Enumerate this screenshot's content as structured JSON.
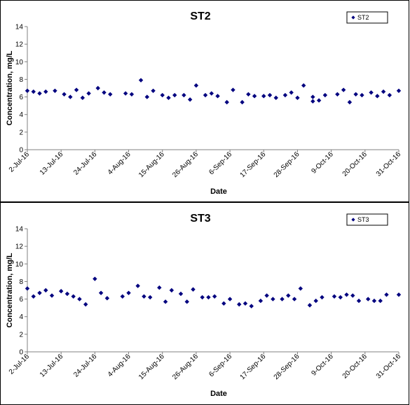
{
  "colors": {
    "marker": "#00007F",
    "axis": "#808080",
    "border": "#000000"
  },
  "chart_data": [
    {
      "type": "scatter",
      "title": "ST2",
      "xlabel": "Date",
      "ylabel": "Concentration, mg/L",
      "ylim": [
        0,
        14
      ],
      "yticks": [
        0,
        2,
        4,
        6,
        8,
        10,
        12,
        14
      ],
      "xlim": [
        "2016-07-02",
        "2016-10-31"
      ],
      "xticks": [
        "2-Jul-16",
        "13-Jul-16",
        "24-Jul-16",
        "4-Aug-16",
        "15-Aug-16",
        "26-Aug-16",
        "6-Sep-16",
        "17-Sep-16",
        "28-Sep-16",
        "9-Oct-16",
        "20-Oct-16",
        "31-Oct-16"
      ],
      "grid": false,
      "legend": "top-right",
      "marker": "diamond",
      "series": [
        {
          "name": "ST2",
          "points": [
            [
              "2016-07-02",
              6.7
            ],
            [
              "2016-07-04",
              6.6
            ],
            [
              "2016-07-06",
              6.4
            ],
            [
              "2016-07-08",
              6.6
            ],
            [
              "2016-07-11",
              6.7
            ],
            [
              "2016-07-14",
              6.3
            ],
            [
              "2016-07-16",
              6.0
            ],
            [
              "2016-07-18",
              6.8
            ],
            [
              "2016-07-20",
              5.9
            ],
            [
              "2016-07-22",
              6.4
            ],
            [
              "2016-07-25",
              7.0
            ],
            [
              "2016-07-27",
              6.5
            ],
            [
              "2016-07-29",
              6.3
            ],
            [
              "2016-08-03",
              6.4
            ],
            [
              "2016-08-05",
              6.3
            ],
            [
              "2016-08-08",
              7.9
            ],
            [
              "2016-08-10",
              6.0
            ],
            [
              "2016-08-12",
              6.7
            ],
            [
              "2016-08-15",
              6.2
            ],
            [
              "2016-08-17",
              5.9
            ],
            [
              "2016-08-19",
              6.2
            ],
            [
              "2016-08-22",
              6.2
            ],
            [
              "2016-08-24",
              5.7
            ],
            [
              "2016-08-26",
              7.3
            ],
            [
              "2016-08-29",
              6.2
            ],
            [
              "2016-08-31",
              6.4
            ],
            [
              "2016-09-02",
              6.1
            ],
            [
              "2016-09-05",
              5.4
            ],
            [
              "2016-09-07",
              6.8
            ],
            [
              "2016-09-10",
              5.4
            ],
            [
              "2016-09-12",
              6.3
            ],
            [
              "2016-09-14",
              6.1
            ],
            [
              "2016-09-17",
              6.1
            ],
            [
              "2016-09-19",
              6.2
            ],
            [
              "2016-09-21",
              5.9
            ],
            [
              "2016-09-24",
              6.2
            ],
            [
              "2016-09-26",
              6.5
            ],
            [
              "2016-09-28",
              5.9
            ],
            [
              "2016-09-30",
              7.3
            ],
            [
              "2016-10-03",
              6.0
            ],
            [
              "2016-10-03",
              5.5
            ],
            [
              "2016-10-05",
              5.6
            ],
            [
              "2016-10-07",
              6.2
            ],
            [
              "2016-10-11",
              6.3
            ],
            [
              "2016-10-13",
              6.8
            ],
            [
              "2016-10-15",
              5.4
            ],
            [
              "2016-10-17",
              6.3
            ],
            [
              "2016-10-19",
              6.2
            ],
            [
              "2016-10-22",
              6.5
            ],
            [
              "2016-10-24",
              6.1
            ],
            [
              "2016-10-26",
              6.6
            ],
            [
              "2016-10-28",
              6.2
            ],
            [
              "2016-10-31",
              6.7
            ]
          ]
        }
      ]
    },
    {
      "type": "scatter",
      "title": "ST3",
      "xlabel": "Date",
      "ylabel": "Concentration, mg/L",
      "ylim": [
        0,
        14
      ],
      "yticks": [
        0,
        2,
        4,
        6,
        8,
        10,
        12,
        14
      ],
      "xlim": [
        "2016-07-02",
        "2016-10-31"
      ],
      "xticks": [
        "2-Jul-16",
        "13-Jul-16",
        "24-Jul-16",
        "4-Aug-16",
        "15-Aug-16",
        "26-Aug-16",
        "6-Sep-16",
        "17-Sep-16",
        "28-Sep-16",
        "9-Oct-16",
        "20-Oct-16",
        "31-Oct-16"
      ],
      "grid": false,
      "legend": "top-right",
      "marker": "diamond",
      "series": [
        {
          "name": "ST3",
          "points": [
            [
              "2016-07-02",
              7.2
            ],
            [
              "2016-07-04",
              6.3
            ],
            [
              "2016-07-06",
              6.7
            ],
            [
              "2016-07-08",
              7.0
            ],
            [
              "2016-07-10",
              6.4
            ],
            [
              "2016-07-13",
              6.9
            ],
            [
              "2016-07-15",
              6.6
            ],
            [
              "2016-07-17",
              6.3
            ],
            [
              "2016-07-19",
              6.0
            ],
            [
              "2016-07-21",
              5.4
            ],
            [
              "2016-07-24",
              8.3
            ],
            [
              "2016-07-26",
              6.7
            ],
            [
              "2016-07-28",
              6.1
            ],
            [
              "2016-08-02",
              6.3
            ],
            [
              "2016-08-04",
              6.7
            ],
            [
              "2016-08-07",
              7.5
            ],
            [
              "2016-08-09",
              6.3
            ],
            [
              "2016-08-11",
              6.2
            ],
            [
              "2016-08-14",
              7.3
            ],
            [
              "2016-08-16",
              5.7
            ],
            [
              "2016-08-18",
              7.0
            ],
            [
              "2016-08-21",
              6.6
            ],
            [
              "2016-08-23",
              5.7
            ],
            [
              "2016-08-25",
              7.1
            ],
            [
              "2016-08-28",
              6.2
            ],
            [
              "2016-08-30",
              6.2
            ],
            [
              "2016-09-01",
              6.3
            ],
            [
              "2016-09-04",
              5.5
            ],
            [
              "2016-09-06",
              6.0
            ],
            [
              "2016-09-09",
              5.4
            ],
            [
              "2016-09-11",
              5.5
            ],
            [
              "2016-09-13",
              5.2
            ],
            [
              "2016-09-16",
              5.8
            ],
            [
              "2016-09-18",
              6.4
            ],
            [
              "2016-09-20",
              6.0
            ],
            [
              "2016-09-23",
              6.0
            ],
            [
              "2016-09-25",
              6.4
            ],
            [
              "2016-09-27",
              6.0
            ],
            [
              "2016-09-29",
              7.2
            ],
            [
              "2016-10-02",
              5.3
            ],
            [
              "2016-10-04",
              5.8
            ],
            [
              "2016-10-06",
              6.2
            ],
            [
              "2016-10-10",
              6.3
            ],
            [
              "2016-10-12",
              6.2
            ],
            [
              "2016-10-14",
              6.5
            ],
            [
              "2016-10-16",
              6.4
            ],
            [
              "2016-10-18",
              5.8
            ],
            [
              "2016-10-21",
              6.0
            ],
            [
              "2016-10-23",
              5.8
            ],
            [
              "2016-10-25",
              5.8
            ],
            [
              "2016-10-27",
              6.5
            ],
            [
              "2016-10-31",
              6.5
            ]
          ]
        }
      ]
    }
  ]
}
